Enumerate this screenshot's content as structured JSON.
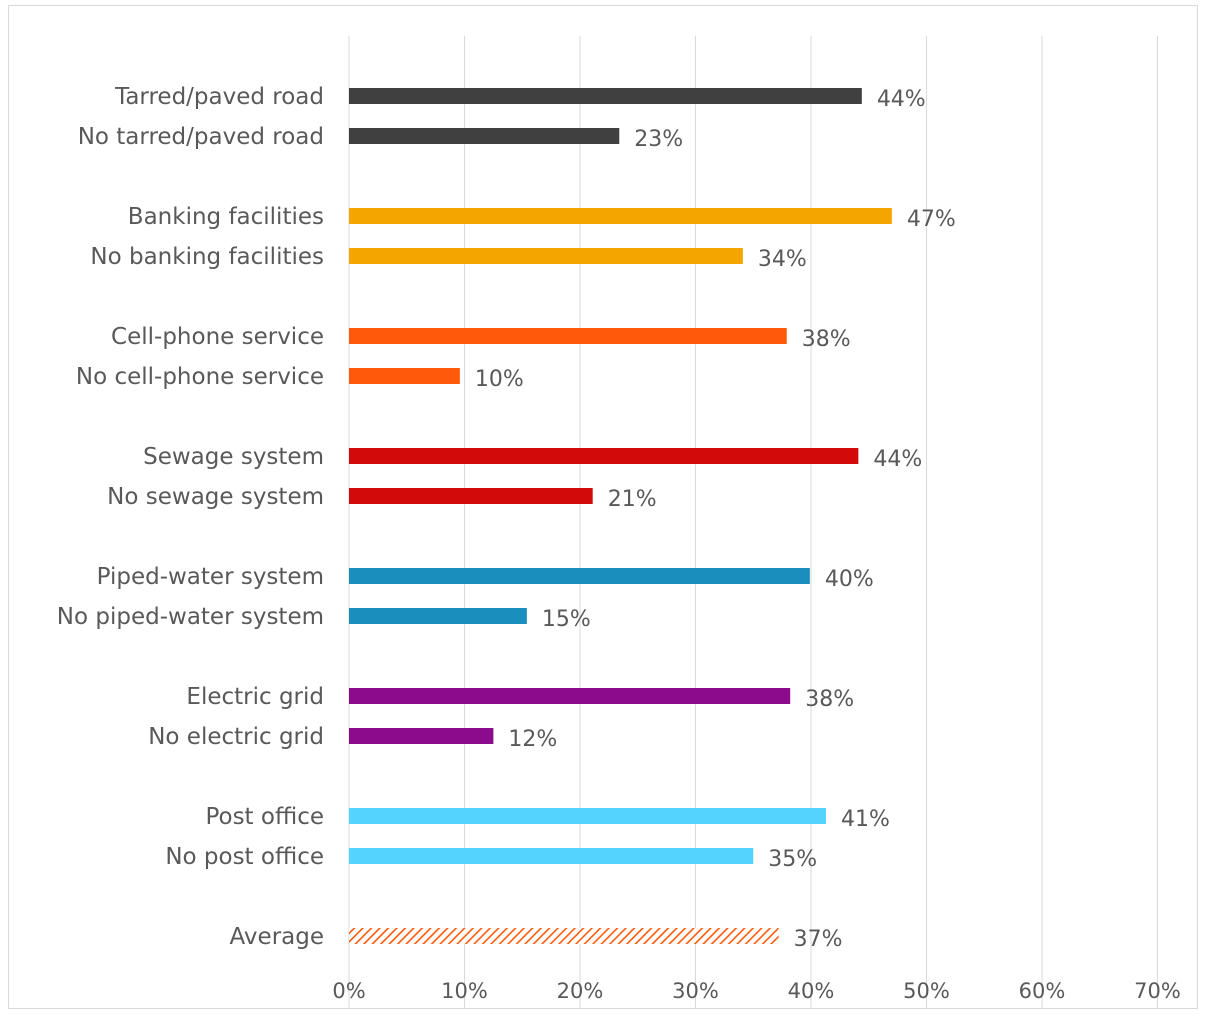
{
  "chart_data": {
    "type": "bar",
    "orientation": "horizontal",
    "title": "",
    "xlabel": "",
    "ylabel": "",
    "xlim": [
      0,
      0.7
    ],
    "grid": true,
    "legend": "none",
    "ticks": [
      "0%",
      "10%",
      "20%",
      "30%",
      "40%",
      "50%",
      "60%",
      "70%"
    ],
    "categories": [
      "Tarred/paved road",
      "No tarred/paved road",
      "Banking facilities",
      "No banking facilities",
      "Cell-phone service",
      "No cell-phone service",
      "Sewage system",
      "No sewage system",
      "Piped-water system",
      "No piped-water system",
      "Electric grid",
      "No electric grid",
      "Post office",
      "No post office",
      "Average"
    ],
    "values": [
      0.444,
      0.234,
      0.47,
      0.341,
      0.379,
      0.096,
      0.441,
      0.211,
      0.399,
      0.154,
      0.382,
      0.125,
      0.413,
      0.35,
      0.372
    ],
    "value_labels": [
      "44%",
      "23%",
      "47%",
      "34%",
      "38%",
      "10%",
      "44%",
      "21%",
      "40%",
      "15%",
      "38%",
      "12%",
      "41%",
      "35%",
      "37%"
    ],
    "colors": [
      "#404040",
      "#404040",
      "#f5a500",
      "#f5a500",
      "#ff5a0a",
      "#ff5a0a",
      "#d20a0a",
      "#d20a0a",
      "#1a8ebd",
      "#1a8ebd",
      "#8c0a8c",
      "#8c0a8c",
      "#52d4ff",
      "#52d4ff",
      "#ff5a0a"
    ],
    "patterns": [
      "solid",
      "solid",
      "solid",
      "solid",
      "solid",
      "solid",
      "solid",
      "solid",
      "solid",
      "solid",
      "solid",
      "solid",
      "solid",
      "solid",
      "hatched"
    ]
  }
}
